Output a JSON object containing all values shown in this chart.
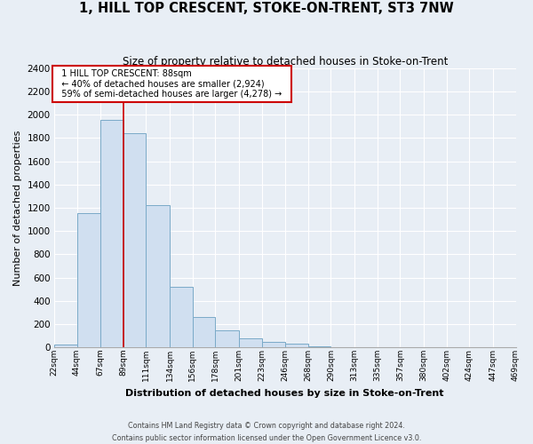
{
  "title": "1, HILL TOP CRESCENT, STOKE-ON-TRENT, ST3 7NW",
  "subtitle": "Size of property relative to detached houses in Stoke-on-Trent",
  "xlabel": "Distribution of detached houses by size in Stoke-on-Trent",
  "ylabel": "Number of detached properties",
  "bar_edges": [
    22,
    44,
    67,
    89,
    111,
    134,
    156,
    178,
    201,
    223,
    246,
    268,
    290,
    313,
    335,
    357,
    380,
    402,
    424,
    447,
    469
  ],
  "bar_heights": [
    25,
    1155,
    1955,
    1840,
    1220,
    520,
    265,
    150,
    80,
    50,
    35,
    10,
    4,
    2,
    1,
    0,
    0,
    0,
    0,
    0
  ],
  "bar_color": "#d0dff0",
  "bar_edge_color": "#7aaac8",
  "property_line_x": 89,
  "annotation_title": "1 HILL TOP CRESCENT: 88sqm",
  "annotation_line1": "← 40% of detached houses are smaller (2,924)",
  "annotation_line2": "59% of semi-detached houses are larger (4,278) →",
  "annotation_box_color": "#ffffff",
  "annotation_box_edge": "#cc0000",
  "vline_color": "#cc0000",
  "ylim": [
    0,
    2400
  ],
  "yticks": [
    0,
    200,
    400,
    600,
    800,
    1000,
    1200,
    1400,
    1600,
    1800,
    2000,
    2200,
    2400
  ],
  "tick_labels": [
    "22sqm",
    "44sqm",
    "67sqm",
    "89sqm",
    "111sqm",
    "134sqm",
    "156sqm",
    "178sqm",
    "201sqm",
    "223sqm",
    "246sqm",
    "268sqm",
    "290sqm",
    "313sqm",
    "335sqm",
    "357sqm",
    "380sqm",
    "402sqm",
    "424sqm",
    "447sqm",
    "469sqm"
  ],
  "footer_line1": "Contains HM Land Registry data © Crown copyright and database right 2024.",
  "footer_line2": "Contains public sector information licensed under the Open Government Licence v3.0.",
  "background_color": "#e8eef5",
  "plot_bg_color": "#e8eef5",
  "grid_color": "#ffffff"
}
